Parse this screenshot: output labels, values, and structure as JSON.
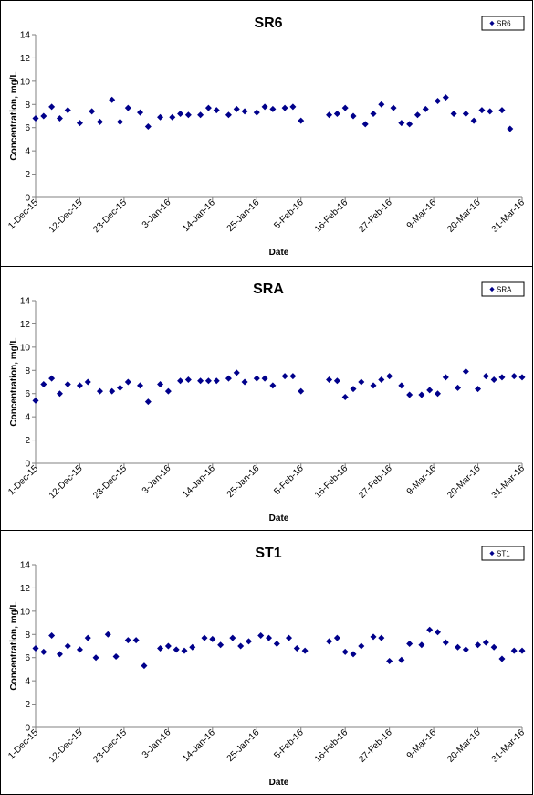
{
  "chart_data": [
    {
      "type": "scatter",
      "title": "SR6",
      "xlabel": "Date",
      "ylabel": "Concentration, mg/L",
      "ylim": [
        0,
        14
      ],
      "yticks": [
        0,
        2,
        4,
        6,
        8,
        10,
        12,
        14
      ],
      "xlim": [
        "2015-12-01",
        "2016-03-31"
      ],
      "xticks": [
        "1-Dec-15",
        "12-Dec-15",
        "23-Dec-15",
        "3-Jan-16",
        "14-Jan-16",
        "25-Jan-16",
        "5-Feb-16",
        "16-Feb-16",
        "27-Feb-16",
        "9-Mar-16",
        "20-Mar-16",
        "31-Mar-16"
      ],
      "legend": "top-right",
      "grid": false,
      "marker_color": "#00008B",
      "series": [
        {
          "name": "SR6",
          "x": [
            "2015-12-01",
            "2015-12-03",
            "2015-12-05",
            "2015-12-07",
            "2015-12-09",
            "2015-12-12",
            "2015-12-15",
            "2015-12-17",
            "2015-12-20",
            "2015-12-22",
            "2015-12-24",
            "2015-12-27",
            "2015-12-29",
            "2016-01-01",
            "2016-01-04",
            "2016-01-06",
            "2016-01-08",
            "2016-01-11",
            "2016-01-13",
            "2016-01-15",
            "2016-01-18",
            "2016-01-20",
            "2016-01-22",
            "2016-01-25",
            "2016-01-27",
            "2016-01-29",
            "2016-02-01",
            "2016-02-03",
            "2016-02-05",
            "2016-02-12",
            "2016-02-14",
            "2016-02-16",
            "2016-02-18",
            "2016-02-21",
            "2016-02-23",
            "2016-02-25",
            "2016-02-28",
            "2016-03-01",
            "2016-03-03",
            "2016-03-05",
            "2016-03-07",
            "2016-03-10",
            "2016-03-12",
            "2016-03-14",
            "2016-03-17",
            "2016-03-19",
            "2016-03-21",
            "2016-03-23",
            "2016-03-26",
            "2016-03-28"
          ],
          "y": [
            6.8,
            7.0,
            7.8,
            6.8,
            7.5,
            6.4,
            7.4,
            6.5,
            8.4,
            6.5,
            7.7,
            7.3,
            6.1,
            6.9,
            6.9,
            7.2,
            7.1,
            7.1,
            7.7,
            7.5,
            7.1,
            7.6,
            7.4,
            7.3,
            7.8,
            7.6,
            7.7,
            7.8,
            6.6,
            7.1,
            7.2,
            7.7,
            7.0,
            6.3,
            7.2,
            8.0,
            7.7,
            6.4,
            6.3,
            7.1,
            7.6,
            8.3,
            8.6,
            7.2,
            7.2,
            6.6,
            7.5,
            7.4,
            7.5,
            5.9
          ]
        }
      ]
    },
    {
      "type": "scatter",
      "title": "SRA",
      "xlabel": "Date",
      "ylabel": "Concentration, mg/L",
      "ylim": [
        0,
        14
      ],
      "yticks": [
        0,
        2,
        4,
        6,
        8,
        10,
        12,
        14
      ],
      "xlim": [
        "2015-12-01",
        "2016-03-31"
      ],
      "xticks": [
        "1-Dec-15",
        "12-Dec-15",
        "23-Dec-15",
        "3-Jan-16",
        "14-Jan-16",
        "25-Jan-16",
        "5-Feb-16",
        "16-Feb-16",
        "27-Feb-16",
        "9-Mar-16",
        "20-Mar-16",
        "31-Mar-16"
      ],
      "legend": "top-right",
      "grid": false,
      "marker_color": "#00008B",
      "series": [
        {
          "name": "SRA",
          "x": [
            "2015-12-01",
            "2015-12-03",
            "2015-12-05",
            "2015-12-07",
            "2015-12-09",
            "2015-12-12",
            "2015-12-14",
            "2015-12-17",
            "2015-12-20",
            "2015-12-22",
            "2015-12-24",
            "2015-12-27",
            "2015-12-29",
            "2016-01-01",
            "2016-01-03",
            "2016-01-06",
            "2016-01-08",
            "2016-01-11",
            "2016-01-13",
            "2016-01-15",
            "2016-01-18",
            "2016-01-20",
            "2016-01-22",
            "2016-01-25",
            "2016-01-27",
            "2016-01-29",
            "2016-02-01",
            "2016-02-03",
            "2016-02-05",
            "2016-02-12",
            "2016-02-14",
            "2016-02-16",
            "2016-02-18",
            "2016-02-20",
            "2016-02-23",
            "2016-02-25",
            "2016-02-27",
            "2016-03-01",
            "2016-03-03",
            "2016-03-06",
            "2016-03-08",
            "2016-03-10",
            "2016-03-12",
            "2016-03-15",
            "2016-03-17",
            "2016-03-20",
            "2016-03-22",
            "2016-03-24",
            "2016-03-26",
            "2016-03-29",
            "2016-03-31"
          ],
          "y": [
            5.4,
            6.8,
            7.3,
            6.0,
            6.8,
            6.7,
            7.0,
            6.2,
            6.2,
            6.5,
            7.0,
            6.7,
            5.3,
            6.8,
            6.2,
            7.1,
            7.2,
            7.1,
            7.1,
            7.1,
            7.3,
            7.8,
            7.0,
            7.3,
            7.3,
            6.7,
            7.5,
            7.5,
            6.2,
            7.2,
            7.1,
            5.7,
            6.4,
            7.0,
            6.7,
            7.2,
            7.5,
            6.7,
            5.9,
            5.9,
            6.3,
            6.0,
            7.4,
            6.5,
            7.9,
            6.4,
            7.5,
            7.2,
            7.4,
            7.5,
            7.4
          ]
        }
      ]
    },
    {
      "type": "scatter",
      "title": "ST1",
      "xlabel": "Date",
      "ylabel": "Concentration, mg/L",
      "ylim": [
        0,
        14
      ],
      "yticks": [
        0,
        2,
        4,
        6,
        8,
        10,
        12,
        14
      ],
      "xlim": [
        "2015-12-01",
        "2016-03-31"
      ],
      "xticks": [
        "1-Dec-15",
        "12-Dec-15",
        "23-Dec-15",
        "3-Jan-16",
        "14-Jan-16",
        "25-Jan-16",
        "5-Feb-16",
        "16-Feb-16",
        "27-Feb-16",
        "9-Mar-16",
        "20-Mar-16",
        "31-Mar-16"
      ],
      "legend": "top-right",
      "grid": false,
      "marker_color": "#00008B",
      "series": [
        {
          "name": "ST1",
          "x": [
            "2015-12-01",
            "2015-12-03",
            "2015-12-05",
            "2015-12-07",
            "2015-12-09",
            "2015-12-12",
            "2015-12-14",
            "2015-12-16",
            "2015-12-19",
            "2015-12-21",
            "2015-12-24",
            "2015-12-26",
            "2015-12-28",
            "2016-01-01",
            "2016-01-03",
            "2016-01-05",
            "2016-01-07",
            "2016-01-09",
            "2016-01-12",
            "2016-01-14",
            "2016-01-16",
            "2016-01-19",
            "2016-01-21",
            "2016-01-23",
            "2016-01-26",
            "2016-01-28",
            "2016-01-30",
            "2016-02-02",
            "2016-02-04",
            "2016-02-06",
            "2016-02-12",
            "2016-02-14",
            "2016-02-16",
            "2016-02-18",
            "2016-02-20",
            "2016-02-23",
            "2016-02-25",
            "2016-02-27",
            "2016-03-01",
            "2016-03-03",
            "2016-03-06",
            "2016-03-08",
            "2016-03-10",
            "2016-03-12",
            "2016-03-15",
            "2016-03-17",
            "2016-03-20",
            "2016-03-22",
            "2016-03-24",
            "2016-03-26",
            "2016-03-29",
            "2016-03-31"
          ],
          "y": [
            6.8,
            6.5,
            7.9,
            6.3,
            7.0,
            6.7,
            7.7,
            6.0,
            8.0,
            6.1,
            7.5,
            7.5,
            5.3,
            6.8,
            7.0,
            6.7,
            6.6,
            6.9,
            7.7,
            7.6,
            7.1,
            7.7,
            7.0,
            7.4,
            7.9,
            7.7,
            7.2,
            7.7,
            6.8,
            6.6,
            7.4,
            7.7,
            6.5,
            6.3,
            7.0,
            7.8,
            7.7,
            5.7,
            5.8,
            7.2,
            7.1,
            8.4,
            8.2,
            7.3,
            6.9,
            6.7,
            7.1,
            7.3,
            6.9,
            5.9,
            6.6,
            6.6
          ]
        }
      ]
    }
  ]
}
